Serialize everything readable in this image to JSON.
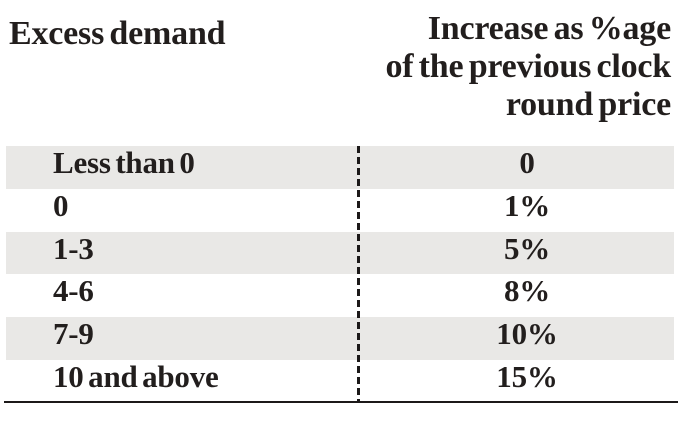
{
  "table": {
    "col1_header": "Excess demand",
    "col2_header_lines": {
      "0": "Increase as %age",
      "1": "of the previous clock",
      "2": "round price"
    },
    "rows": [
      {
        "demand": "Less than 0",
        "increase": "0"
      },
      {
        "demand": "0",
        "increase": "1%"
      },
      {
        "demand": "1-3",
        "increase": "5%"
      },
      {
        "demand": "4-6",
        "increase": "8%"
      },
      {
        "demand": "7-9",
        "increase": "10%"
      },
      {
        "demand": "10 and above",
        "increase": "15%"
      }
    ],
    "colors": {
      "text": "#221e1d",
      "stripe": "#e9e8e6",
      "rule": "#1c1919",
      "background": "#ffffff"
    }
  }
}
